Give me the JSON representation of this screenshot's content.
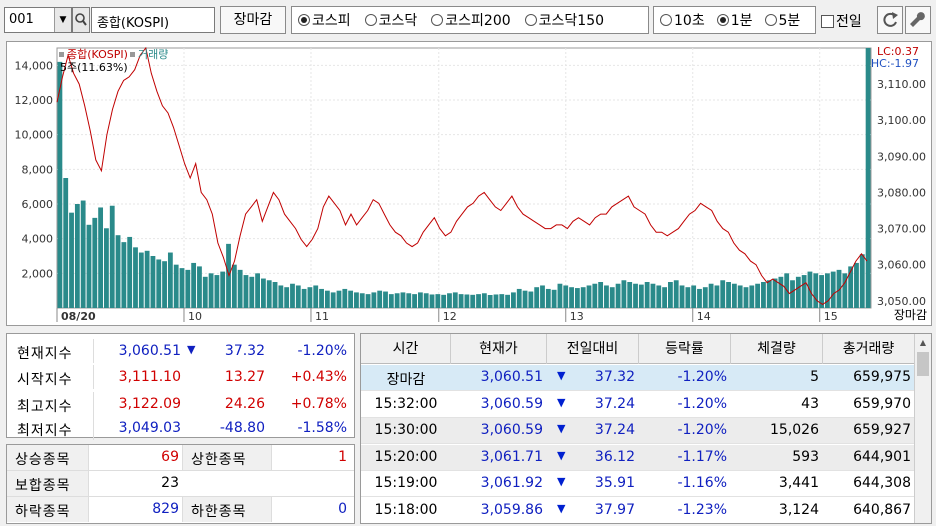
{
  "toolbar": {
    "code": "001",
    "name": "종합(KOSPI)",
    "close_button": "장마감",
    "market_options": [
      "코스피",
      "코스닥",
      "코스피200",
      "코스닥150"
    ],
    "market_selected": "코스피",
    "interval_options": [
      "10초",
      "1분",
      "5분"
    ],
    "interval_selected": "1분",
    "prev_day_label": "전일"
  },
  "chart": {
    "legend_index": "종합(KOSPI)",
    "legend_volume": "거래량",
    "ma_label": "5주(11.63%)",
    "lc": "LC:0.37",
    "hc": "HC:-1.97",
    "close_tag": "장마감",
    "date_label": "08/20",
    "colors": {
      "index_line": "#c00000",
      "volume_bars": "#2a8a8a"
    }
  },
  "chart_data": {
    "type": "line",
    "x_ticks": [
      "08/20",
      "10",
      "11",
      "12",
      "13",
      "14",
      "15"
    ],
    "y_left_label": "거래량",
    "y_left_ticks": [
      "14,000",
      "12,000",
      "10,000",
      "8,000",
      "6,000",
      "4,000",
      "2,000"
    ],
    "y_left_range": [
      0,
      15000
    ],
    "y_right_ticks": [
      "3,110.00",
      "3,100.00",
      "3,090.00",
      "3,080.00",
      "3,070.00",
      "3,060.00",
      "3,050.00"
    ],
    "y_right_range": [
      3048,
      3120
    ],
    "series": [
      {
        "name": "종합(KOSPI)",
        "values": [
          3105,
          3112,
          3118,
          3113,
          3110,
          3104,
          3097,
          3089,
          3086,
          3096,
          3103,
          3108,
          3111,
          3112,
          3114,
          3118,
          3120,
          3113,
          3108,
          3104,
          3102,
          3098,
          3093,
          3088,
          3084,
          3088,
          3080,
          3078,
          3074,
          3066,
          3062,
          3057,
          3061,
          3068,
          3074,
          3076,
          3078,
          3072,
          3076,
          3080,
          3078,
          3074,
          3072,
          3070,
          3067,
          3065,
          3067,
          3070,
          3076,
          3079,
          3077,
          3075,
          3071,
          3074,
          3071,
          3073,
          3075,
          3078,
          3077,
          3074,
          3071,
          3069,
          3068,
          3066,
          3065,
          3066,
          3069,
          3071,
          3073,
          3070,
          3068,
          3069,
          3072,
          3074,
          3076,
          3077,
          3079,
          3080,
          3078,
          3076,
          3075,
          3077,
          3079,
          3076,
          3074,
          3073,
          3072,
          3071,
          3070,
          3070,
          3071,
          3071,
          3070,
          3072,
          3073,
          3072,
          3071,
          3073,
          3074,
          3074,
          3076,
          3077,
          3078,
          3079,
          3076,
          3075,
          3074,
          3071,
          3069,
          3069,
          3068,
          3069,
          3070,
          3072,
          3074,
          3075,
          3077,
          3076,
          3075,
          3072,
          3070,
          3069,
          3066,
          3064,
          3063,
          3061,
          3060,
          3057,
          3055,
          3056,
          3055,
          3054,
          3052,
          3053,
          3054,
          3055,
          3052,
          3050,
          3049,
          3050,
          3052,
          3053,
          3055,
          3058,
          3061,
          3063,
          3061
        ]
      },
      {
        "name": "거래량",
        "values": [
          14200,
          7500,
          5500,
          6000,
          6200,
          4800,
          5200,
          5800,
          4600,
          5900,
          4200,
          3800,
          4100,
          3500,
          3200,
          3300,
          3000,
          2800,
          2700,
          3200,
          2500,
          2300,
          2200,
          2600,
          2400,
          1800,
          2000,
          1900,
          2100,
          3700,
          2500,
          2200,
          1900,
          1800,
          2000,
          1700,
          1600,
          1500,
          1300,
          1200,
          1400,
          1300,
          1100,
          1200,
          1300,
          1100,
          1000,
          900,
          1000,
          1100,
          1000,
          900,
          850,
          800,
          900,
          1000,
          950,
          800,
          850,
          900,
          850,
          800,
          900,
          850,
          780,
          800,
          760,
          850,
          900,
          800,
          780,
          760,
          800,
          850,
          750,
          780,
          800,
          760,
          900,
          1100,
          1000,
          950,
          1200,
          1300,
          1100,
          1050,
          1400,
          1300,
          1200,
          1150,
          1200,
          1300,
          1400,
          1500,
          1300,
          1200,
          1400,
          1600,
          1500,
          1400,
          1350,
          1500,
          1400,
          1300,
          1200,
          1500,
          1600,
          1300,
          1200,
          1300,
          1100,
          1200,
          1400,
          1300,
          1600,
          1500,
          1400,
          1300,
          1200,
          1300,
          1400,
          1500,
          1600,
          1700,
          1800,
          2000,
          1600,
          1800,
          1900,
          2100,
          2000,
          1900,
          2000,
          2100,
          2200,
          2000,
          2400,
          2600,
          3100,
          15000
        ]
      }
    ]
  },
  "index_panel": {
    "rows": [
      {
        "label": "현재지수",
        "value": "3,060.51",
        "arrow": "▼",
        "change": "37.32",
        "pct": "-1.20%",
        "value_color": "blue",
        "change_color": "blue",
        "pct_color": "blue"
      },
      {
        "label": "시작지수",
        "value": "3,111.10",
        "arrow": "",
        "change": "13.27",
        "pct": "+0.43%",
        "value_color": "red",
        "change_color": "red",
        "pct_color": "red"
      },
      {
        "label": "최고지수",
        "value": "3,122.09",
        "arrow": "",
        "change": "24.26",
        "pct": "+0.78%",
        "value_color": "red",
        "change_color": "red",
        "pct_color": "red"
      },
      {
        "label": "최저지수",
        "value": "3,049.03",
        "arrow": "",
        "change": "-48.80",
        "pct": "-1.58%",
        "value_color": "blue",
        "change_color": "blue",
        "pct_color": "blue"
      }
    ]
  },
  "breadth_panel": {
    "rising_label": "상승종목",
    "rising_value": "69",
    "upper_label": "상한종목",
    "upper_value": "1",
    "unchanged_label": "보합종목",
    "unchanged_value": "23",
    "falling_label": "하락종목",
    "falling_value": "829",
    "lower_label": "하한종목",
    "lower_value": "0"
  },
  "time_table": {
    "headers": [
      "시간",
      "현재가",
      "전일대비",
      "등락률",
      "체결량",
      "총거래량"
    ],
    "rows": [
      {
        "time": "장마감",
        "price": "3,060.51",
        "arrow": "▼",
        "change": "37.32",
        "pct": "-1.20%",
        "vol": "5",
        "total": "659,975"
      },
      {
        "time": "15:32:00",
        "price": "3,060.59",
        "arrow": "▼",
        "change": "37.24",
        "pct": "-1.20%",
        "vol": "43",
        "total": "659,970"
      },
      {
        "time": "15:30:00",
        "price": "3,060.59",
        "arrow": "▼",
        "change": "37.24",
        "pct": "-1.20%",
        "vol": "15,026",
        "total": "659,927"
      },
      {
        "time": "15:20:00",
        "price": "3,061.71",
        "arrow": "▼",
        "change": "36.12",
        "pct": "-1.17%",
        "vol": "593",
        "total": "644,901"
      },
      {
        "time": "15:19:00",
        "price": "3,061.92",
        "arrow": "▼",
        "change": "35.91",
        "pct": "-1.16%",
        "vol": "3,441",
        "total": "644,308"
      },
      {
        "time": "15:18:00",
        "price": "3,059.86",
        "arrow": "▼",
        "change": "37.97",
        "pct": "-1.23%",
        "vol": "3,124",
        "total": "640,867"
      }
    ]
  }
}
